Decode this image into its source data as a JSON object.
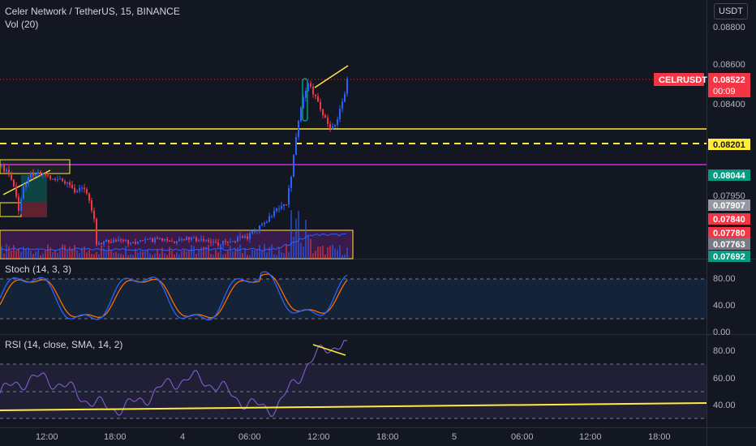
{
  "header": {
    "symbol_title": "Celer Network / TetherUS, 15, BINANCE",
    "volume_label": "Vol (20)",
    "currency_button": "USDT"
  },
  "price_axis": {
    "ticks": [
      "0.08800",
      "0.08600",
      "0.08400",
      "0.07950"
    ],
    "symbol_tag": "CELRUSDT",
    "last_price": "0.08522",
    "countdown": "00:09",
    "badges": [
      {
        "label": "0.08201",
        "bg": "#ffeb3b",
        "fg": "#131722"
      },
      {
        "label": "0.08044",
        "bg": "#089981",
        "fg": "#ffffff"
      },
      {
        "label": "0.07907",
        "bg": "#9598a1",
        "fg": "#ffffff"
      },
      {
        "label": "0.07840",
        "bg": "#f23645",
        "fg": "#ffffff"
      },
      {
        "label": "0.07780",
        "bg": "#f23645",
        "fg": "#ffffff"
      },
      {
        "label": "0.07763",
        "bg": "#787b86",
        "fg": "#ffffff"
      },
      {
        "label": "0.07692",
        "bg": "#089981",
        "fg": "#ffffff"
      }
    ]
  },
  "stoch": {
    "label": "Stoch (14, 3, 3)",
    "ticks": [
      "80.00",
      "40.00",
      "0.00"
    ]
  },
  "rsi": {
    "label": "RSI (14, close, SMA, 14, 2)",
    "ticks": [
      "80.00",
      "60.00",
      "40.00"
    ]
  },
  "time_axis": {
    "labels": [
      "12:00",
      "18:00",
      "4",
      "06:00",
      "12:00",
      "18:00",
      "5",
      "06:00",
      "12:00",
      "18:00"
    ]
  },
  "colors": {
    "background": "#131722",
    "up": "#2962ff",
    "down": "#f23645",
    "yellow": "#ffeb3b",
    "purple": "#9c27b0",
    "stoch_k": "#2962ff",
    "stoch_d": "#ff6d00",
    "rsi_line": "#7e57c2"
  }
}
